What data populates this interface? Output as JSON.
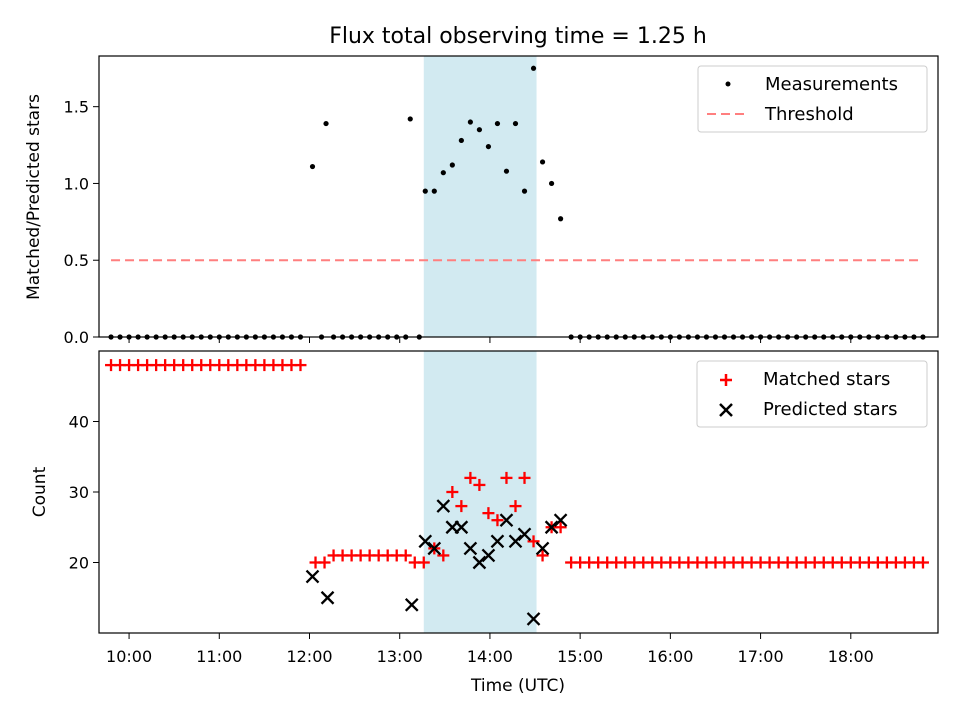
{
  "title": "Flux total observing time = 1.25 h",
  "xlabel": "Time (UTC)",
  "x_ticks": [
    "10:00",
    "11:00",
    "12:00",
    "13:00",
    "14:00",
    "15:00",
    "16:00",
    "17:00",
    "18:00"
  ],
  "colors": {
    "highlight": "#add8e6",
    "threshold": "#ff7f7f",
    "matched": "#ff0000",
    "predicted": "#000000",
    "measurement": "#000000"
  },
  "chart_data": [
    {
      "type": "scatter",
      "ylabel": "Matched/Predicted stars",
      "x_range": [
        "09:40",
        "18:58"
      ],
      "ylim": [
        0,
        1.83
      ],
      "y_ticks": [
        0.0,
        0.5,
        1.0,
        1.5
      ],
      "y_tick_labels": [
        "0.0",
        "0.5",
        "1.0",
        "1.5"
      ],
      "highlight_span": [
        "13:16",
        "14:31"
      ],
      "legend_position": "top-right",
      "series": [
        {
          "name": "Measurements",
          "marker": "dot",
          "color": "#000000",
          "points": [
            [
              "09:48",
              0
            ],
            [
              "09:54",
              0
            ],
            [
              "10:00",
              0
            ],
            [
              "10:06",
              0
            ],
            [
              "10:12",
              0
            ],
            [
              "10:18",
              0
            ],
            [
              "10:24",
              0
            ],
            [
              "10:30",
              0
            ],
            [
              "10:36",
              0
            ],
            [
              "10:42",
              0
            ],
            [
              "10:48",
              0
            ],
            [
              "10:54",
              0
            ],
            [
              "11:00",
              0
            ],
            [
              "11:06",
              0
            ],
            [
              "11:12",
              0
            ],
            [
              "11:18",
              0
            ],
            [
              "11:24",
              0
            ],
            [
              "11:30",
              0
            ],
            [
              "11:36",
              0
            ],
            [
              "11:42",
              0
            ],
            [
              "11:48",
              0
            ],
            [
              "11:54",
              0
            ],
            [
              "12:02",
              1.11
            ],
            [
              "12:08",
              0
            ],
            [
              "12:11",
              1.39
            ],
            [
              "12:16",
              0
            ],
            [
              "12:22",
              0
            ],
            [
              "12:28",
              0
            ],
            [
              "12:34",
              0
            ],
            [
              "12:40",
              0
            ],
            [
              "12:46",
              0
            ],
            [
              "12:52",
              0
            ],
            [
              "12:58",
              0
            ],
            [
              "13:04",
              0
            ],
            [
              "13:07",
              1.42
            ],
            [
              "13:13",
              0
            ],
            [
              "13:17",
              0.95
            ],
            [
              "13:23",
              0.95
            ],
            [
              "13:29",
              1.07
            ],
            [
              "13:35",
              1.12
            ],
            [
              "13:41",
              1.28
            ],
            [
              "13:47",
              1.4
            ],
            [
              "13:53",
              1.35
            ],
            [
              "13:59",
              1.24
            ],
            [
              "14:05",
              1.39
            ],
            [
              "14:11",
              1.08
            ],
            [
              "14:17",
              1.39
            ],
            [
              "14:23",
              0.95
            ],
            [
              "14:29",
              1.75
            ],
            [
              "14:35",
              1.14
            ],
            [
              "14:41",
              1.0
            ],
            [
              "14:47",
              0.77
            ],
            [
              "14:54",
              0
            ],
            [
              "15:00",
              0
            ],
            [
              "15:06",
              0
            ],
            [
              "15:12",
              0
            ],
            [
              "15:18",
              0
            ],
            [
              "15:24",
              0
            ],
            [
              "15:30",
              0
            ],
            [
              "15:36",
              0
            ],
            [
              "15:42",
              0
            ],
            [
              "15:48",
              0
            ],
            [
              "15:54",
              0
            ],
            [
              "16:00",
              0
            ],
            [
              "16:06",
              0
            ],
            [
              "16:12",
              0
            ],
            [
              "16:18",
              0
            ],
            [
              "16:24",
              0
            ],
            [
              "16:30",
              0
            ],
            [
              "16:36",
              0
            ],
            [
              "16:42",
              0
            ],
            [
              "16:48",
              0
            ],
            [
              "16:54",
              0
            ],
            [
              "17:00",
              0
            ],
            [
              "17:06",
              0
            ],
            [
              "17:12",
              0
            ],
            [
              "17:18",
              0
            ],
            [
              "17:24",
              0
            ],
            [
              "17:30",
              0
            ],
            [
              "17:36",
              0
            ],
            [
              "17:42",
              0
            ],
            [
              "17:48",
              0
            ],
            [
              "17:54",
              0
            ],
            [
              "18:00",
              0
            ],
            [
              "18:06",
              0
            ],
            [
              "18:12",
              0
            ],
            [
              "18:18",
              0
            ],
            [
              "18:24",
              0
            ],
            [
              "18:30",
              0
            ],
            [
              "18:36",
              0
            ],
            [
              "18:42",
              0
            ],
            [
              "18:48",
              0
            ]
          ]
        },
        {
          "name": "Threshold",
          "marker": "dashed-line",
          "color": "#ff7f7f",
          "points": [
            [
              "09:48",
              0.5
            ],
            [
              "18:48",
              0.5
            ]
          ]
        }
      ]
    },
    {
      "type": "scatter",
      "ylabel": "Count",
      "x_range": [
        "09:40",
        "18:58"
      ],
      "ylim": [
        10,
        50
      ],
      "y_ticks": [
        20,
        30,
        40
      ],
      "y_tick_labels": [
        "20",
        "30",
        "40"
      ],
      "highlight_span": [
        "13:16",
        "14:31"
      ],
      "legend_position": "top-right",
      "series": [
        {
          "name": "Matched stars",
          "marker": "plus",
          "color": "#ff0000",
          "points": [
            [
              "09:48",
              48
            ],
            [
              "09:54",
              48
            ],
            [
              "10:00",
              48
            ],
            [
              "10:06",
              48
            ],
            [
              "10:12",
              48
            ],
            [
              "10:18",
              48
            ],
            [
              "10:24",
              48
            ],
            [
              "10:30",
              48
            ],
            [
              "10:36",
              48
            ],
            [
              "10:42",
              48
            ],
            [
              "10:48",
              48
            ],
            [
              "10:54",
              48
            ],
            [
              "11:00",
              48
            ],
            [
              "11:06",
              48
            ],
            [
              "11:12",
              48
            ],
            [
              "11:18",
              48
            ],
            [
              "11:24",
              48
            ],
            [
              "11:30",
              48
            ],
            [
              "11:36",
              48
            ],
            [
              "11:42",
              48
            ],
            [
              "11:48",
              48
            ],
            [
              "11:54",
              48
            ],
            [
              "12:04",
              20
            ],
            [
              "12:10",
              20
            ],
            [
              "12:16",
              21
            ],
            [
              "12:22",
              21
            ],
            [
              "12:28",
              21
            ],
            [
              "12:34",
              21
            ],
            [
              "12:40",
              21
            ],
            [
              "12:46",
              21
            ],
            [
              "12:52",
              21
            ],
            [
              "12:58",
              21
            ],
            [
              "13:04",
              21
            ],
            [
              "13:10",
              20
            ],
            [
              "13:16",
              20
            ],
            [
              "13:23",
              22
            ],
            [
              "13:29",
              21
            ],
            [
              "13:35",
              30
            ],
            [
              "13:41",
              28
            ],
            [
              "13:47",
              32
            ],
            [
              "13:53",
              31
            ],
            [
              "13:59",
              27
            ],
            [
              "14:05",
              26
            ],
            [
              "14:11",
              32
            ],
            [
              "14:17",
              28
            ],
            [
              "14:23",
              32
            ],
            [
              "14:29",
              23
            ],
            [
              "14:35",
              21
            ],
            [
              "14:41",
              25
            ],
            [
              "14:47",
              25
            ],
            [
              "14:54",
              20
            ],
            [
              "15:00",
              20
            ],
            [
              "15:06",
              20
            ],
            [
              "15:12",
              20
            ],
            [
              "15:18",
              20
            ],
            [
              "15:24",
              20
            ],
            [
              "15:30",
              20
            ],
            [
              "15:36",
              20
            ],
            [
              "15:42",
              20
            ],
            [
              "15:48",
              20
            ],
            [
              "15:54",
              20
            ],
            [
              "16:00",
              20
            ],
            [
              "16:06",
              20
            ],
            [
              "16:12",
              20
            ],
            [
              "16:18",
              20
            ],
            [
              "16:24",
              20
            ],
            [
              "16:30",
              20
            ],
            [
              "16:36",
              20
            ],
            [
              "16:42",
              20
            ],
            [
              "16:48",
              20
            ],
            [
              "16:54",
              20
            ],
            [
              "17:00",
              20
            ],
            [
              "17:06",
              20
            ],
            [
              "17:12",
              20
            ],
            [
              "17:18",
              20
            ],
            [
              "17:24",
              20
            ],
            [
              "17:30",
              20
            ],
            [
              "17:36",
              20
            ],
            [
              "17:42",
              20
            ],
            [
              "17:48",
              20
            ],
            [
              "17:54",
              20
            ],
            [
              "18:00",
              20
            ],
            [
              "18:06",
              20
            ],
            [
              "18:12",
              20
            ],
            [
              "18:18",
              20
            ],
            [
              "18:24",
              20
            ],
            [
              "18:30",
              20
            ],
            [
              "18:36",
              20
            ],
            [
              "18:42",
              20
            ],
            [
              "18:48",
              20
            ]
          ]
        },
        {
          "name": "Predicted stars",
          "marker": "x",
          "color": "#000000",
          "points": [
            [
              "12:02",
              18
            ],
            [
              "12:12",
              15
            ],
            [
              "13:08",
              14
            ],
            [
              "13:17",
              23
            ],
            [
              "13:23",
              22
            ],
            [
              "13:29",
              28
            ],
            [
              "13:35",
              25
            ],
            [
              "13:41",
              25
            ],
            [
              "13:47",
              22
            ],
            [
              "13:53",
              20
            ],
            [
              "13:59",
              21
            ],
            [
              "14:05",
              23
            ],
            [
              "14:11",
              26
            ],
            [
              "14:17",
              23
            ],
            [
              "14:23",
              24
            ],
            [
              "14:29",
              12
            ],
            [
              "14:35",
              22
            ],
            [
              "14:41",
              25
            ],
            [
              "14:47",
              26
            ]
          ]
        }
      ]
    }
  ]
}
